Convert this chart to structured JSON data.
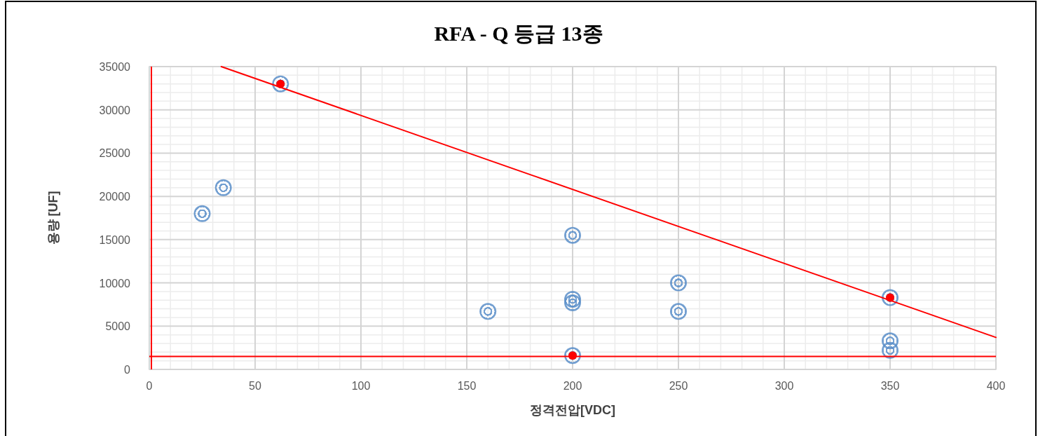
{
  "chart_data": {
    "type": "scatter",
    "title": "RFA - Q 등급 13종",
    "xlabel": "정격전압[VDC]",
    "ylabel": "용량 [UF]",
    "xlim": [
      0,
      400
    ],
    "xticks": [
      0,
      50,
      100,
      150,
      200,
      250,
      300,
      350,
      400
    ],
    "ylim": [
      0,
      35000
    ],
    "yticks": [
      0,
      5000,
      10000,
      15000,
      20000,
      25000,
      30000,
      35000
    ],
    "grid": true,
    "marker": "circle",
    "ref_lines": [
      {
        "axis": "y",
        "value": 1500,
        "color": "#ff0000"
      },
      {
        "axis": "x",
        "value": 1,
        "color": "#ff0000"
      }
    ],
    "series": [
      {
        "color": "#5b8fc9",
        "x": [
          62,
          35,
          25,
          200,
          250,
          200,
          200,
          160,
          250,
          350,
          350,
          350,
          200
        ],
        "values": [
          33000,
          21000,
          18000,
          15500,
          10000,
          8100,
          7700,
          6700,
          6700,
          8300,
          3300,
          2200,
          1600
        ]
      },
      {
        "color": "#ff0000",
        "x": [
          62,
          350,
          200
        ],
        "values": [
          33000,
          8300,
          1600
        ]
      },
      {
        "type": "line",
        "color": "#ff0000",
        "marker": "none",
        "x": [
          34,
          400
        ],
        "values": [
          35000,
          3700
        ]
      }
    ]
  }
}
